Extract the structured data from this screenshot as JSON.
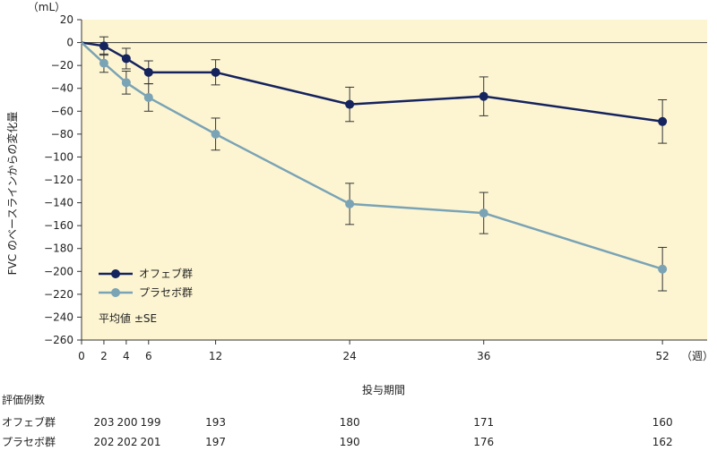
{
  "chart_data": {
    "type": "line",
    "title": "",
    "ylabel": "FVC のベースラインからの変化量",
    "y_unit": "（mL）",
    "xlabel": "投与期間",
    "x_unit": "（週）",
    "ylim": [
      -260,
      20
    ],
    "y_ticks": [
      20,
      0,
      -20,
      -40,
      -60,
      -80,
      -100,
      -120,
      -140,
      -160,
      -180,
      -200,
      -220,
      -240,
      -260
    ],
    "x_ticks": [
      0,
      2,
      4,
      6,
      12,
      24,
      36,
      52
    ],
    "series": [
      {
        "name": "オフェブ群",
        "color": "#15235e",
        "x": [
          0,
          2,
          4,
          6,
          12,
          24,
          36,
          52
        ],
        "values": [
          0,
          -3,
          -14,
          -26,
          -26,
          -54,
          -47,
          -69
        ],
        "se": [
          0,
          8,
          9,
          10,
          11,
          15,
          17,
          19
        ]
      },
      {
        "name": "プラセボ群",
        "color": "#7aa3b5",
        "x": [
          0,
          2,
          4,
          6,
          12,
          24,
          36,
          52
        ],
        "values": [
          0,
          -18,
          -35,
          -48,
          -80,
          -141,
          -149,
          -198
        ],
        "se": [
          0,
          8,
          10,
          12,
          14,
          18,
          18,
          19
        ]
      }
    ],
    "legend": [
      "オフェブ群",
      "プラセボ群"
    ],
    "legend_note": "平均値 ±SE",
    "legend_position": "bottom-left"
  },
  "table": {
    "header": "評価例数",
    "rows": [
      {
        "label": "オフェブ群",
        "counts": [
          "203",
          "200",
          "199",
          "193",
          "180",
          "171",
          "160"
        ]
      },
      {
        "label": "プラセボ群",
        "counts": [
          "202",
          "202",
          "201",
          "197",
          "190",
          "176",
          "162"
        ]
      }
    ]
  },
  "colors": {
    "plot_background": "#fdf5d2",
    "axis": "#333333"
  }
}
